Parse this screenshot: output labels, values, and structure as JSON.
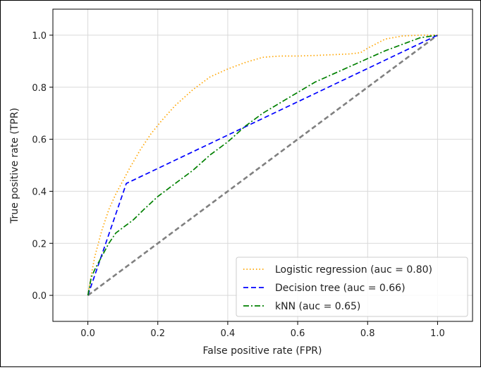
{
  "chart_data": {
    "type": "line",
    "title": "",
    "xlabel": "False positive rate (FPR)",
    "ylabel": "True positive rate (TPR)",
    "xlim": [
      -0.1,
      1.1
    ],
    "ylim": [
      -0.1,
      1.1
    ],
    "xticks": [
      0.0,
      0.2,
      0.4,
      0.6,
      0.8,
      1.0
    ],
    "yticks": [
      0.0,
      0.2,
      0.4,
      0.6,
      0.8,
      1.0
    ],
    "xtick_labels": [
      "0.0",
      "0.2",
      "0.4",
      "0.6",
      "0.8",
      "1.0"
    ],
    "ytick_labels": [
      "0.0",
      "0.2",
      "0.4",
      "0.6",
      "0.8",
      "1.0"
    ],
    "grid": true,
    "legend_position": "lower-right",
    "series": [
      {
        "name": "Logistic regression (auc = 0.80)",
        "color": "#ffa500",
        "style": "dotted",
        "x": [
          0.0,
          0.01,
          0.02,
          0.04,
          0.06,
          0.08,
          0.1,
          0.12,
          0.15,
          0.18,
          0.21,
          0.25,
          0.3,
          0.35,
          0.4,
          0.45,
          0.5,
          0.55,
          0.6,
          0.65,
          0.7,
          0.75,
          0.78,
          0.8,
          0.85,
          0.9,
          0.95,
          1.0
        ],
        "y": [
          0.0,
          0.08,
          0.15,
          0.25,
          0.33,
          0.39,
          0.44,
          0.49,
          0.56,
          0.62,
          0.67,
          0.73,
          0.79,
          0.84,
          0.87,
          0.895,
          0.915,
          0.92,
          0.92,
          0.922,
          0.925,
          0.928,
          0.933,
          0.95,
          0.985,
          0.997,
          1.0,
          1.0
        ]
      },
      {
        "name": "Decision tree (auc = 0.66)",
        "color": "#0000ff",
        "style": "dashed",
        "x": [
          0.0,
          0.11,
          1.0
        ],
        "y": [
          0.0,
          0.43,
          1.0
        ]
      },
      {
        "name": "kNN (auc = 0.65)",
        "color": "#008000",
        "style": "dashdot",
        "x": [
          0.0,
          0.01,
          0.02,
          0.04,
          0.06,
          0.08,
          0.1,
          0.13,
          0.16,
          0.2,
          0.25,
          0.3,
          0.35,
          0.4,
          0.45,
          0.5,
          0.55,
          0.6,
          0.65,
          0.7,
          0.75,
          0.8,
          0.85,
          0.9,
          0.95,
          1.0
        ],
        "y": [
          0.0,
          0.07,
          0.1,
          0.15,
          0.2,
          0.24,
          0.26,
          0.29,
          0.33,
          0.38,
          0.43,
          0.48,
          0.54,
          0.59,
          0.65,
          0.7,
          0.74,
          0.78,
          0.82,
          0.85,
          0.88,
          0.91,
          0.94,
          0.965,
          0.99,
          1.0
        ]
      },
      {
        "name": "",
        "color": "#808080",
        "style": "dashed",
        "x": [
          0.0,
          1.0
        ],
        "y": [
          0.0,
          1.0
        ]
      }
    ]
  }
}
